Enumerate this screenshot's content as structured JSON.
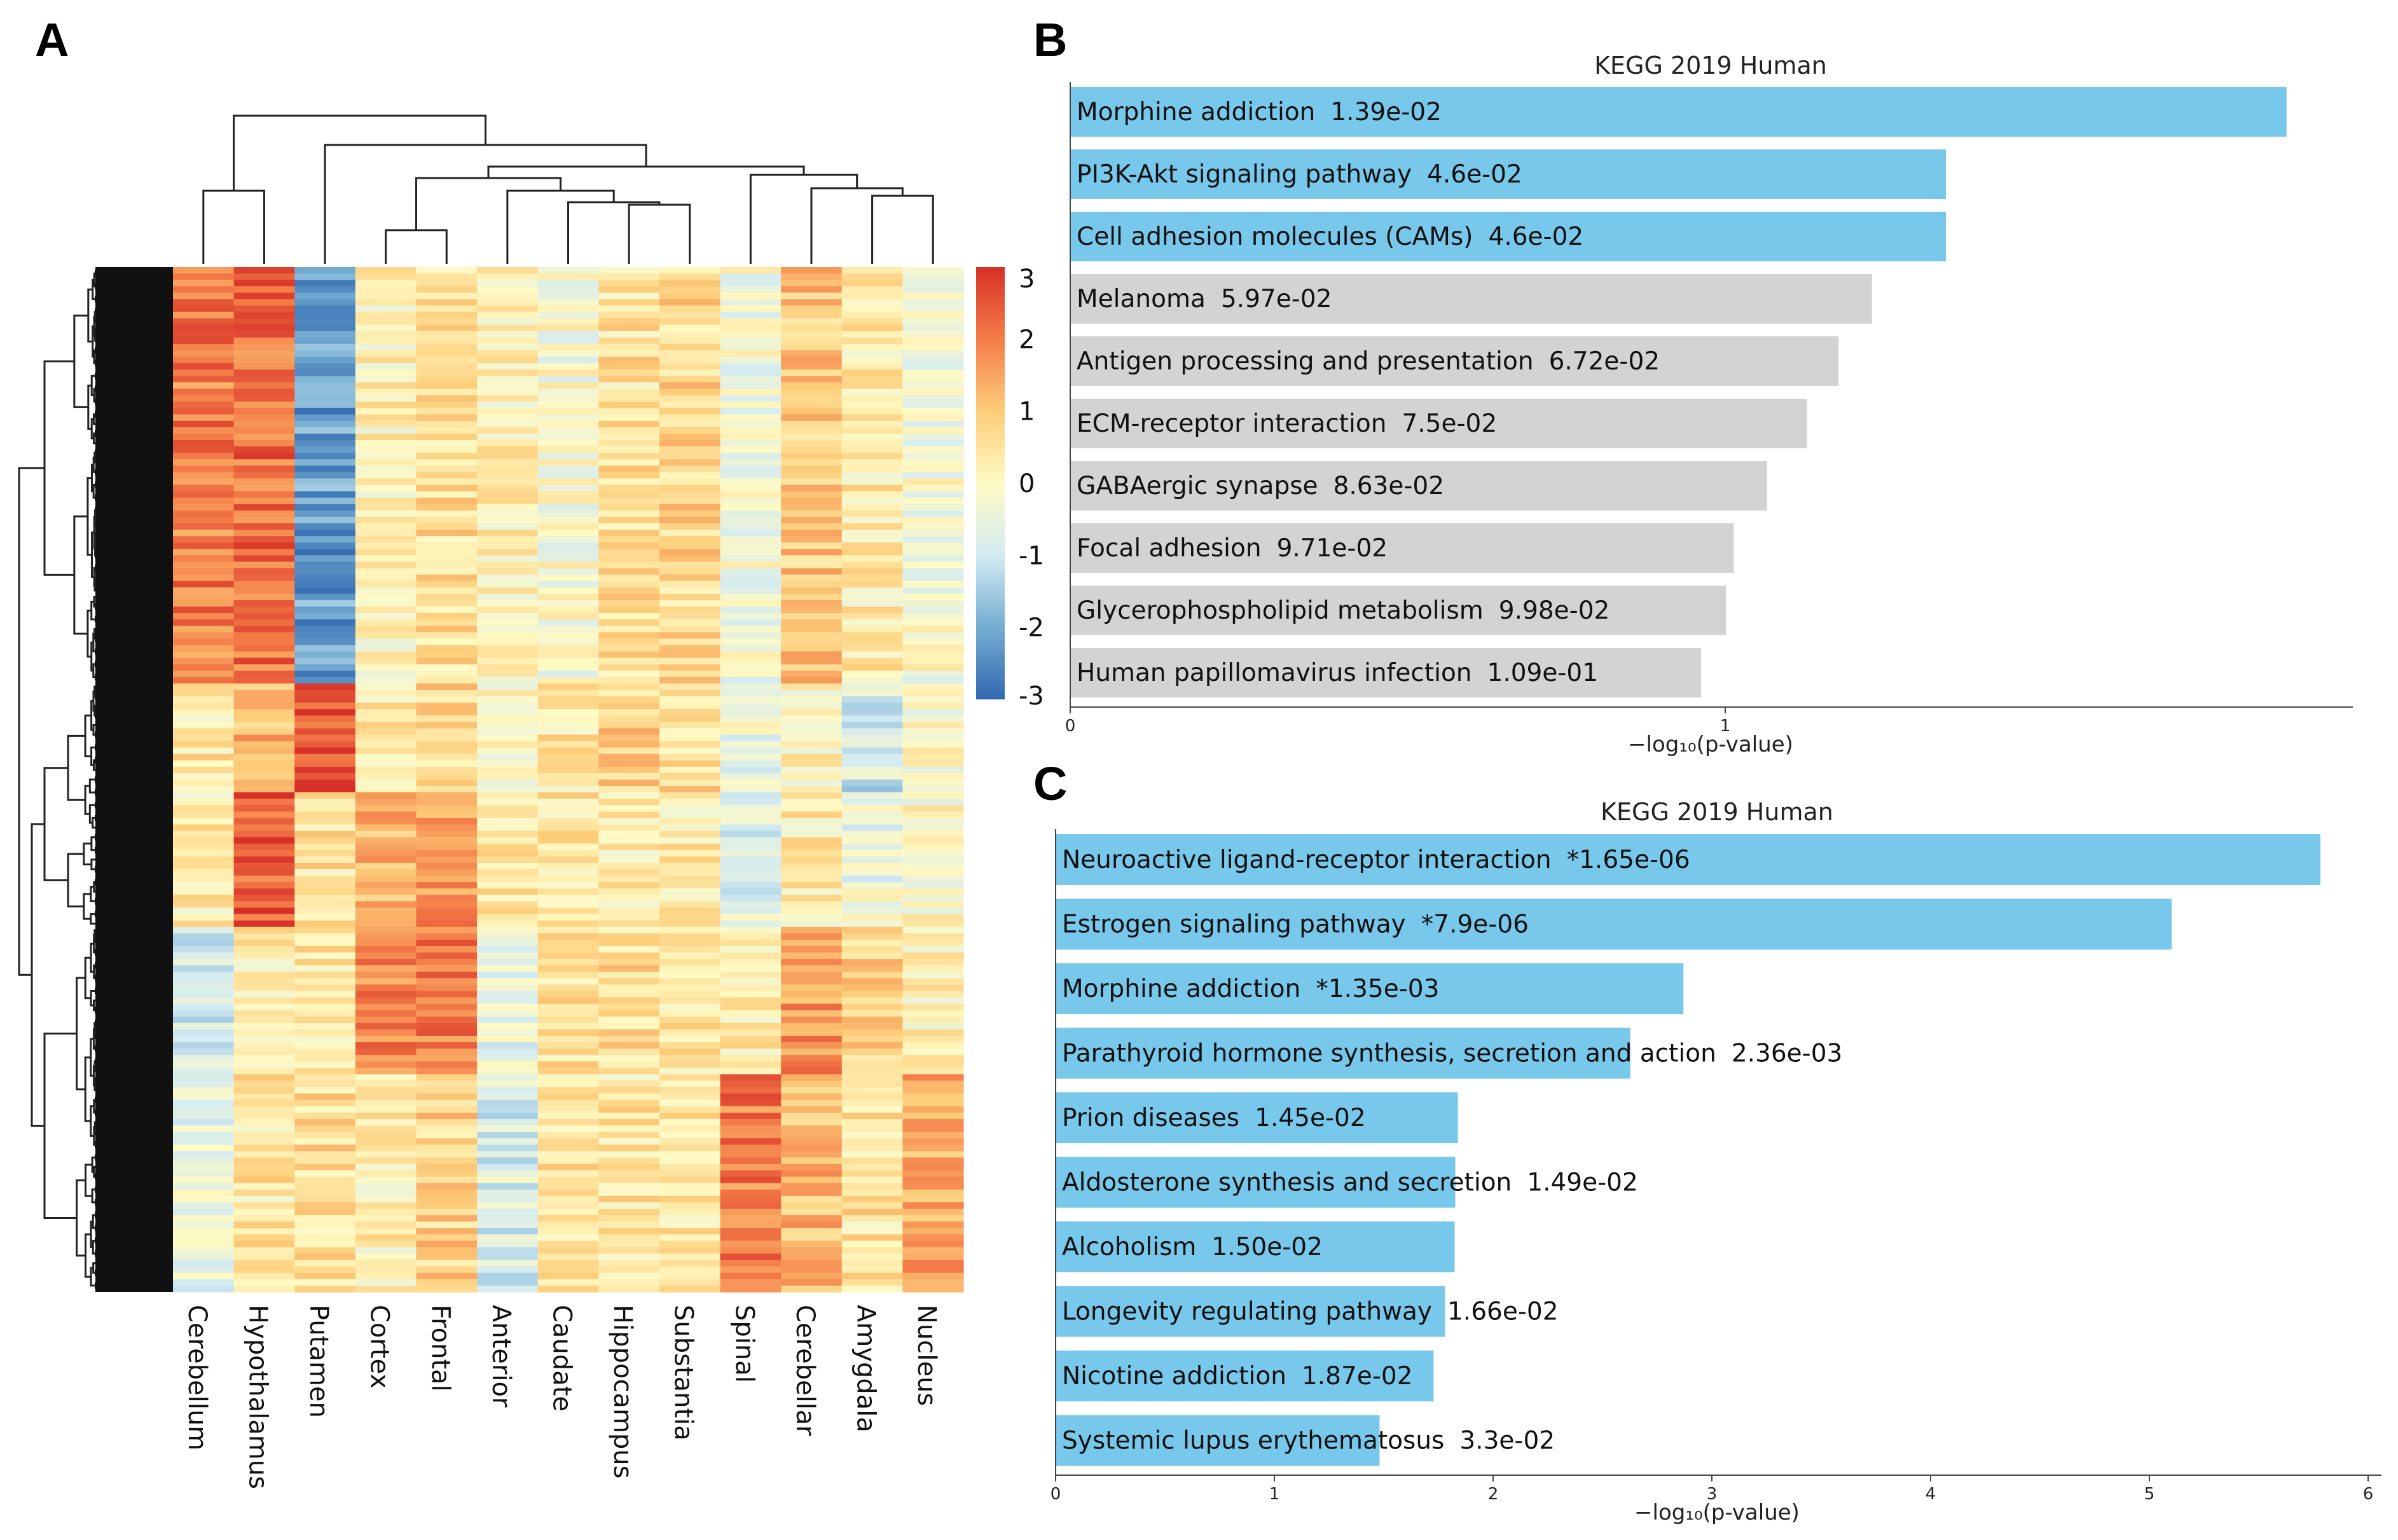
{
  "panels": {
    "a": "A",
    "b": "B",
    "c": "C"
  },
  "colors": {
    "bar_significant": "#78c8ec",
    "bar_other": "#d3d3d3",
    "axis": "#444444"
  },
  "heatmap": {
    "type": "heatmap",
    "columns": [
      "Cerebellum",
      "Hypothalamus",
      "Putamen",
      "Cortex",
      "Frontal",
      "Anterior",
      "Caudate",
      "Hippocampus",
      "Substantia",
      "Spinal",
      "Cerebellar",
      "Amygdala",
      "Nucleus"
    ],
    "colorbar": {
      "ticks": [
        "3",
        "2",
        "1",
        "0",
        "-1",
        "-2",
        "-3"
      ],
      "range": [
        -3,
        3
      ]
    },
    "rows": 160,
    "blocks": [
      {
        "from": 0,
        "to": 65,
        "values": [
          2.0,
          2.2,
          -2.2,
          0.2,
          0.6,
          0.2,
          -0.2,
          0.5,
          0.7,
          -0.3,
          1.0,
          0.3,
          -0.2
        ]
      },
      {
        "from": 65,
        "to": 82,
        "values": [
          0.4,
          1.2,
          2.6,
          0.3,
          0.7,
          0.1,
          0.4,
          0.8,
          0.6,
          -0.4,
          0.2,
          -1.0,
          0.0
        ]
      },
      {
        "from": 82,
        "to": 103,
        "values": [
          0.3,
          2.4,
          0.5,
          1.3,
          1.6,
          0.5,
          0.4,
          0.2,
          0.3,
          -0.6,
          0.3,
          -0.4,
          0.0
        ]
      },
      {
        "from": 103,
        "to": 126,
        "values": [
          -0.8,
          0.3,
          0.4,
          2.0,
          2.1,
          -0.6,
          0.5,
          0.6,
          0.4,
          0.3,
          1.7,
          0.9,
          0.2
        ]
      },
      {
        "from": 126,
        "to": 160,
        "values": [
          -0.4,
          0.4,
          0.6,
          0.2,
          0.8,
          -0.8,
          0.6,
          0.4,
          0.4,
          2.0,
          1.2,
          0.5,
          1.4
        ]
      }
    ]
  },
  "chart_data": [
    {
      "type": "bar",
      "panel": "B",
      "title": "KEGG 2019 Human",
      "xlabel": "−log₁₀(p-value)",
      "xlim": [
        0,
        1.95
      ],
      "xticks": [
        0,
        1
      ],
      "categories": [
        "Morphine addiction",
        "PI3K-Akt signaling pathway",
        "Cell adhesion molecules (CAMs)",
        "Melanoma",
        "Antigen processing and presentation",
        "ECM-receptor interaction",
        "GABAergic synapse",
        "Focal adhesion",
        "Glycerophospholipid metabolism",
        "Human papillomavirus infection"
      ],
      "pvalue_labels": [
        "1.39e-02",
        "4.6e-02",
        "4.6e-02",
        "5.97e-02",
        "6.72e-02",
        "7.5e-02",
        "8.63e-02",
        "9.71e-02",
        "9.98e-02",
        "1.09e-01"
      ],
      "values": [
        1.857,
        1.337,
        1.337,
        1.224,
        1.173,
        1.125,
        1.064,
        1.013,
        1.001,
        0.963
      ],
      "highlighted": [
        true,
        true,
        true,
        false,
        false,
        false,
        false,
        false,
        false,
        false
      ]
    },
    {
      "type": "bar",
      "panel": "C",
      "title": "KEGG 2019 Human",
      "xlabel": "−log₁₀(p-value)",
      "xlim": [
        0,
        6.0
      ],
      "xticks": [
        0,
        1,
        2,
        3,
        4,
        5,
        6
      ],
      "categories": [
        "Neuroactive ligand-receptor interaction",
        "Estrogen signaling pathway",
        "Morphine addiction",
        "Parathyroid hormone synthesis, secretion and action",
        "Prion diseases",
        "Aldosterone synthesis and secretion",
        "Alcoholism",
        "Longevity regulating pathway",
        "Nicotine addiction",
        "Systemic lupus erythematosus"
      ],
      "pvalue_labels": [
        "*1.65e-06",
        "*7.9e-06",
        "*1.35e-03",
        "2.36e-03",
        "1.45e-02",
        "1.49e-02",
        "1.50e-02",
        "1.66e-02",
        "1.87e-02",
        "3.3e-02"
      ],
      "values": [
        5.782,
        5.102,
        2.87,
        2.627,
        1.839,
        1.827,
        1.824,
        1.78,
        1.728,
        1.481
      ],
      "highlighted": [
        true,
        true,
        true,
        true,
        true,
        true,
        true,
        true,
        true,
        true
      ]
    }
  ]
}
